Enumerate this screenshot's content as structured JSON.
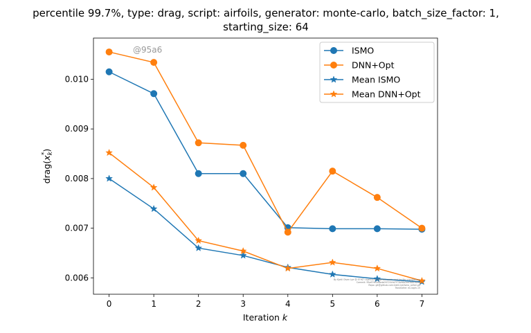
{
  "chart_data": {
    "type": "line",
    "title_line1": "percentile 99.7%, type: drag, script: airfoils, generator: monte-carlo, batch_size_factor: 1,",
    "title_line2": "starting_size: 64",
    "xlabel_text": "Iteration ",
    "xlabel_var": "k",
    "ylabel_main": "drag(",
    "ylabel_var": "x",
    "ylabel_sub": "k",
    "ylabel_sup": "*",
    "ylabel_close": ")",
    "x": [
      0,
      1,
      2,
      3,
      4,
      5,
      6,
      7
    ],
    "xlim": [
      -0.35,
      7.35
    ],
    "ylim": [
      0.00567,
      0.01083
    ],
    "yticks": [
      0.006,
      0.007,
      0.008,
      0.009,
      0.01
    ],
    "ytick_labels": [
      "0.006",
      "0.007",
      "0.008",
      "0.009",
      "0.010"
    ],
    "legend_position": "top-right",
    "grid": false,
    "series": [
      {
        "name": "ISMO",
        "color": "#1f77b4",
        "marker": "circle",
        "values": [
          0.01015,
          0.00971,
          0.0081,
          0.0081,
          0.00701,
          0.00699,
          0.00699,
          0.00698
        ]
      },
      {
        "name": "DNN+Opt",
        "color": "#ff7f0e",
        "marker": "circle",
        "values": [
          0.01055,
          0.01034,
          0.00872,
          0.00867,
          0.00692,
          0.00815,
          0.00762,
          0.007
        ]
      },
      {
        "name": "Mean ISMO",
        "color": "#1f77b4",
        "marker": "star",
        "values": [
          0.008,
          0.00739,
          0.0066,
          0.00645,
          0.00621,
          0.00607,
          0.00598,
          0.00592
        ]
      },
      {
        "name": "Mean DNN+Opt",
        "color": "#ff7f0e",
        "marker": "star",
        "values": [
          0.00852,
          0.00782,
          0.00675,
          0.00654,
          0.00619,
          0.00631,
          0.00619,
          0.00594
        ]
      }
    ],
    "annotations": {
      "watermark": "@95a6",
      "fine_print": [
        "By Kjetil Olsen Lye @ ETHZ <kjetil.o.lye@gmail.com> and Ivy Ng <ivy@ethz>",
        "Commit: 95a67fe0d6ede097254fd7f73b98a2ee3b8c9098",
        "Repo: git@github.com:kjetil-lye/ismo_airfoil.git",
        "Hostname: ex-login-15"
      ]
    }
  }
}
